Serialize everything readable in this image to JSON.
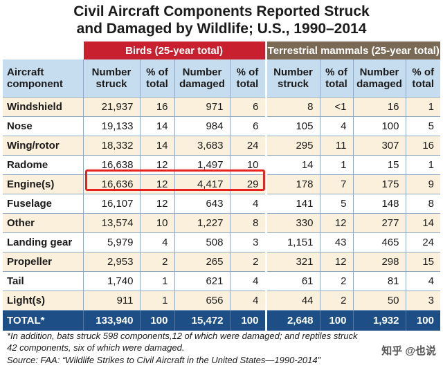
{
  "title": {
    "line1": "Civil Aircraft Components Reported Struck",
    "line2": "and Damaged by Wildlife; U.S., 1990–2014"
  },
  "groups": {
    "birds": "Birds (25-year total)",
    "mammals": "Terrestrial mammals (25-year total)"
  },
  "headers": {
    "component": [
      "Aircraft",
      "component"
    ],
    "number_struck": [
      "Number",
      "struck"
    ],
    "pct_total": [
      "% of",
      "total"
    ],
    "number_damaged": [
      "Number",
      "damaged"
    ]
  },
  "rows": [
    {
      "name": "Windshield",
      "b_struck": "21,937",
      "b_struck_pct": "16",
      "b_dmg": "971",
      "b_dmg_pct": "6",
      "m_struck": "8",
      "m_struck_pct": "<1",
      "m_dmg": "16",
      "m_dmg_pct": "1"
    },
    {
      "name": "Nose",
      "b_struck": "19,133",
      "b_struck_pct": "14",
      "b_dmg": "984",
      "b_dmg_pct": "6",
      "m_struck": "105",
      "m_struck_pct": "4",
      "m_dmg": "100",
      "m_dmg_pct": "5"
    },
    {
      "name": "Wing/rotor",
      "b_struck": "18,332",
      "b_struck_pct": "14",
      "b_dmg": "3,683",
      "b_dmg_pct": "24",
      "m_struck": "295",
      "m_struck_pct": "11",
      "m_dmg": "307",
      "m_dmg_pct": "16"
    },
    {
      "name": "Radome",
      "b_struck": "16,638",
      "b_struck_pct": "12",
      "b_dmg": "1,497",
      "b_dmg_pct": "10",
      "m_struck": "14",
      "m_struck_pct": "1",
      "m_dmg": "15",
      "m_dmg_pct": "1"
    },
    {
      "name": "Engine(s)",
      "b_struck": "16,636",
      "b_struck_pct": "12",
      "b_dmg": "4,417",
      "b_dmg_pct": "29",
      "m_struck": "178",
      "m_struck_pct": "7",
      "m_dmg": "175",
      "m_dmg_pct": "9"
    },
    {
      "name": "Fuselage",
      "b_struck": "16,107",
      "b_struck_pct": "12",
      "b_dmg": "643",
      "b_dmg_pct": "4",
      "m_struck": "141",
      "m_struck_pct": "5",
      "m_dmg": "148",
      "m_dmg_pct": "8"
    },
    {
      "name": "Other",
      "b_struck": "13,574",
      "b_struck_pct": "10",
      "b_dmg": "1,227",
      "b_dmg_pct": "8",
      "m_struck": "330",
      "m_struck_pct": "12",
      "m_dmg": "277",
      "m_dmg_pct": "14"
    },
    {
      "name": "Landing gear",
      "b_struck": "5,979",
      "b_struck_pct": "4",
      "b_dmg": "508",
      "b_dmg_pct": "3",
      "m_struck": "1,151",
      "m_struck_pct": "43",
      "m_dmg": "465",
      "m_dmg_pct": "24"
    },
    {
      "name": "Propeller",
      "b_struck": "2,953",
      "b_struck_pct": "2",
      "b_dmg": "265",
      "b_dmg_pct": "2",
      "m_struck": "321",
      "m_struck_pct": "12",
      "m_dmg": "298",
      "m_dmg_pct": "15"
    },
    {
      "name": "Tail",
      "b_struck": "1,740",
      "b_struck_pct": "1",
      "b_dmg": "621",
      "b_dmg_pct": "4",
      "m_struck": "61",
      "m_struck_pct": "2",
      "m_dmg": "81",
      "m_dmg_pct": "4"
    },
    {
      "name": "Light(s)",
      "b_struck": "911",
      "b_struck_pct": "1",
      "b_dmg": "656",
      "b_dmg_pct": "4",
      "m_struck": "44",
      "m_struck_pct": "2",
      "m_dmg": "50",
      "m_dmg_pct": "3"
    }
  ],
  "total": {
    "name": "TOTAL*",
    "b_struck": "133,940",
    "b_struck_pct": "100",
    "b_dmg": "15,472",
    "b_dmg_pct": "100",
    "m_struck": "2,648",
    "m_struck_pct": "100",
    "m_dmg": "1,932",
    "m_dmg_pct": "100"
  },
  "footnote": {
    "line1": "*In addition, bats struck 598 components,12 of which were damaged; and reptiles struck",
    "line2": " 42 components, six of which were damaged.",
    "source": "Source: FAA: “Wildlife Strikes to Civil Aircraft in the United States—1990-2014”"
  },
  "watermark": "知乎 @也说",
  "colors": {
    "birds": "#c8202f",
    "mammals": "#7a6a55",
    "header": "#c6dcef",
    "stripe": "#fbf0dc",
    "total": "#1d4f86",
    "highlight": "#e8231f"
  }
}
